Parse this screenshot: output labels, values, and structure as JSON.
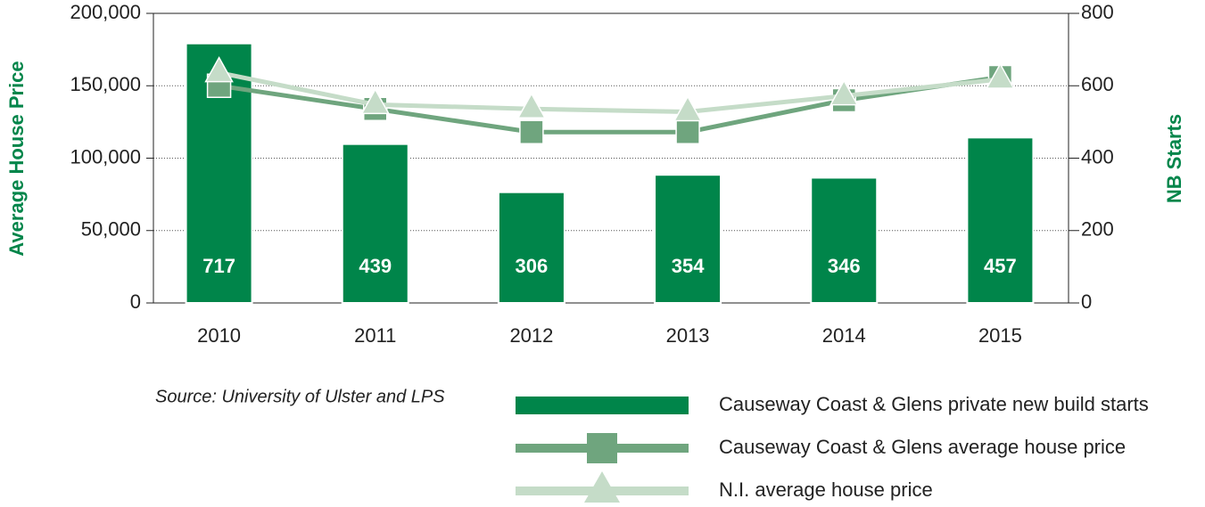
{
  "chart_data": {
    "type": "bar",
    "categories": [
      "2010",
      "2011",
      "2012",
      "2013",
      "2014",
      "2015"
    ],
    "series": [
      {
        "name": "Causeway Coast & Glens private new build starts",
        "type": "bar",
        "axis": "y2",
        "color": "#00854a",
        "values": [
          717,
          439,
          306,
          354,
          346,
          457
        ]
      },
      {
        "name": "Causeway Coast & Glens average house price",
        "type": "line",
        "marker": "square",
        "color": "#6fa57e",
        "values": [
          150000,
          134000,
          118000,
          118000,
          140000,
          156000
        ]
      },
      {
        "name": "N.I. average house price",
        "type": "line",
        "marker": "triangle",
        "color": "#c5dcc8",
        "values": [
          159000,
          137000,
          134000,
          132000,
          143000,
          154500
        ]
      }
    ],
    "ylabel": "Average House Price",
    "y2label": "NB Starts",
    "ylim": [
      0,
      200000
    ],
    "yticks": [
      0,
      {
        "value": 50000,
        "label": "50,000"
      },
      {
        "value": 100000,
        "label": "100,000"
      },
      {
        "value": 150000,
        "label": "150,000"
      },
      {
        "value": 200000,
        "label": "200,000"
      }
    ],
    "y2lim": [
      0,
      800
    ],
    "y2ticks": [
      0,
      200,
      400,
      600,
      800
    ],
    "grid": true,
    "source": "Source: University of Ulster and LPS"
  }
}
